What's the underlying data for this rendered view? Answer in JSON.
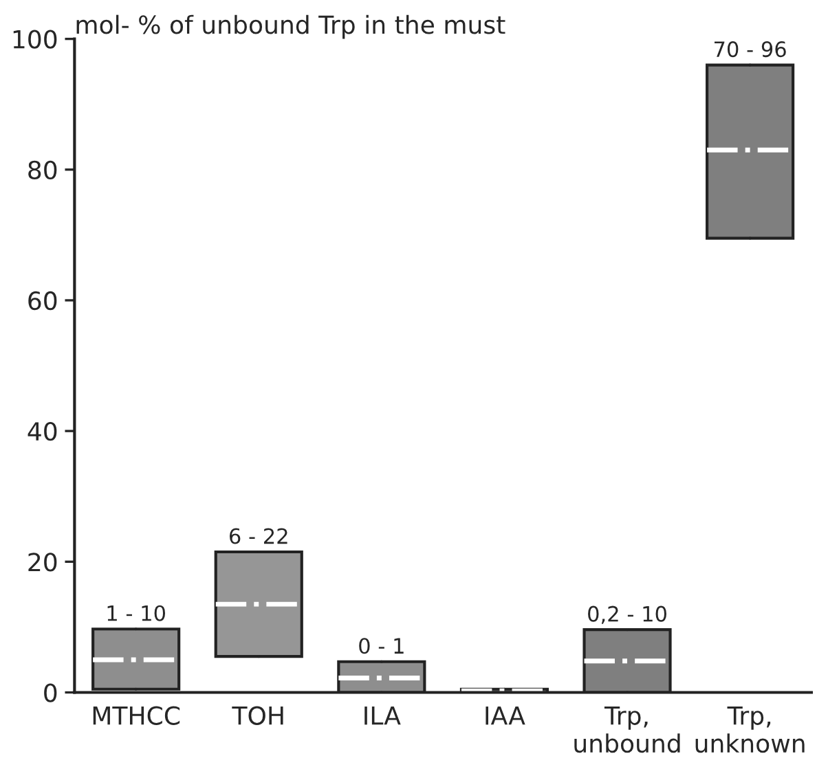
{
  "chart_data": {
    "type": "box",
    "ylabel": "mol- % of unbound Trp in the must",
    "categories": [
      "MTHCC",
      "TOH",
      "ILA",
      "IAA",
      "Trp,\nunbound",
      "Trp,\nunknown"
    ],
    "boxes": [
      {
        "low": 0.5,
        "q1": 0.5,
        "median": 5,
        "q3": 9.7,
        "high": 9.7
      },
      {
        "low": 5.5,
        "q1": 5.5,
        "median": 13.5,
        "q3": 21.5,
        "high": 21.5
      },
      {
        "low": 0,
        "q1": 0,
        "median": 2.2,
        "q3": 4.7,
        "high": 4.7
      },
      {
        "low": 0,
        "q1": 0,
        "median": 0.25,
        "q3": 0.5,
        "high": 0.5
      },
      {
        "low": 0,
        "q1": 0,
        "median": 4.8,
        "q3": 9.6,
        "high": 9.6
      },
      {
        "low": 69.5,
        "q1": 69.5,
        "median": 83,
        "q3": 96,
        "high": 96
      }
    ],
    "colors": [
      "#8e8e8e",
      "#969696",
      "#8e8e8e",
      "#8e8e8e",
      "#7f7f7f",
      "#7f7f7f"
    ],
    "annotations": [
      {
        "text": "1 - 10",
        "x": "MTHCC",
        "y": 9.7
      },
      {
        "text": "6 - 22",
        "x": "TOH",
        "y": 21.5
      },
      {
        "text": "0 - 1",
        "x": "ILA",
        "y": 4.7
      },
      {
        "text": "0,2 - 10",
        "x": "Trp,\nunbound",
        "y": 9.6
      },
      {
        "text": "70 - 96",
        "x": "Trp,\nunknown",
        "y": 96
      }
    ],
    "ylim": [
      0,
      100
    ],
    "yticks": [
      0,
      20,
      40,
      60,
      80,
      100
    ],
    "grid": false,
    "legend": false
  }
}
